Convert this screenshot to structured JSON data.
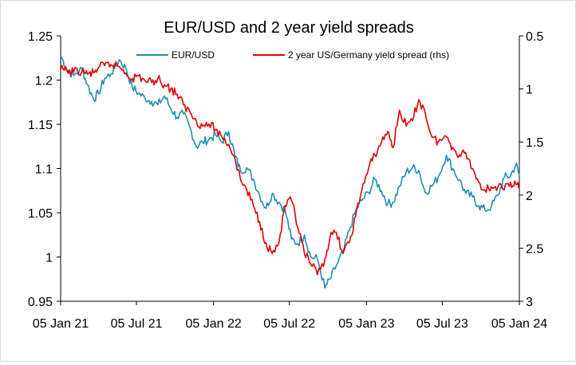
{
  "chart_data": {
    "type": "line",
    "title": "EUR/USD and 2 year yield spreads",
    "xlabel": "",
    "ylabel_left": "",
    "ylabel_right": "",
    "x_ticks": [
      "05 Jan 21",
      "05 Jul 21",
      "05 Jan 22",
      "05 Jul 22",
      "05 Jan 23",
      "05 Jul 23",
      "05 Jan 24"
    ],
    "x_tick_dates": [
      "2021-01-05",
      "2021-07-05",
      "2022-01-05",
      "2022-07-05",
      "2023-01-05",
      "2023-07-05",
      "2024-01-05"
    ],
    "xlim": [
      "2021-01-05",
      "2024-01-05"
    ],
    "y_left": {
      "ticks": [
        "0.95",
        "1",
        "1.05",
        "1.1",
        "1.15",
        "1.2",
        "1.25"
      ],
      "ylim": [
        0.95,
        1.25
      ]
    },
    "y_right": {
      "ticks": [
        "0.5",
        "1",
        "1.5",
        "2",
        "2.5",
        "3"
      ],
      "ylim": [
        0.5,
        3
      ],
      "inverted": true
    },
    "grid": false,
    "legend": "top",
    "series": [
      {
        "name": "EUR/USD",
        "axis": "left",
        "color": "#1f8fb0",
        "x": [
          "2021-01-05",
          "2021-01-20",
          "2021-02-05",
          "2021-02-25",
          "2021-03-10",
          "2021-03-25",
          "2021-04-05",
          "2021-04-20",
          "2021-05-05",
          "2021-05-25",
          "2021-06-10",
          "2021-06-25",
          "2021-07-10",
          "2021-07-25",
          "2021-08-10",
          "2021-08-25",
          "2021-09-10",
          "2021-09-25",
          "2021-10-10",
          "2021-10-25",
          "2021-11-10",
          "2021-11-25",
          "2021-12-10",
          "2021-12-25",
          "2022-01-10",
          "2022-01-25",
          "2022-02-10",
          "2022-02-25",
          "2022-03-10",
          "2022-03-25",
          "2022-04-10",
          "2022-04-25",
          "2022-05-10",
          "2022-05-25",
          "2022-06-10",
          "2022-06-25",
          "2022-07-10",
          "2022-07-25",
          "2022-08-10",
          "2022-08-25",
          "2022-09-10",
          "2022-09-28",
          "2022-10-10",
          "2022-10-25",
          "2022-11-10",
          "2022-11-25",
          "2022-12-10",
          "2022-12-25",
          "2023-01-10",
          "2023-01-25",
          "2023-02-10",
          "2023-02-25",
          "2023-03-10",
          "2023-03-25",
          "2023-04-10",
          "2023-04-25",
          "2023-05-10",
          "2023-05-25",
          "2023-06-10",
          "2023-06-25",
          "2023-07-15",
          "2023-07-30",
          "2023-08-15",
          "2023-08-30",
          "2023-09-15",
          "2023-09-30",
          "2023-10-15",
          "2023-10-30",
          "2023-11-15",
          "2023-11-30",
          "2023-12-15",
          "2023-12-28",
          "2024-01-05"
        ],
        "values": [
          1.228,
          1.212,
          1.205,
          1.213,
          1.195,
          1.178,
          1.185,
          1.202,
          1.207,
          1.223,
          1.213,
          1.192,
          1.185,
          1.18,
          1.176,
          1.172,
          1.182,
          1.168,
          1.158,
          1.162,
          1.146,
          1.125,
          1.13,
          1.133,
          1.138,
          1.13,
          1.142,
          1.115,
          1.098,
          1.101,
          1.088,
          1.07,
          1.055,
          1.072,
          1.062,
          1.053,
          1.02,
          1.015,
          1.025,
          1.0,
          0.998,
          0.965,
          0.975,
          0.99,
          1.005,
          1.03,
          1.052,
          1.064,
          1.073,
          1.088,
          1.075,
          1.06,
          1.062,
          1.08,
          1.096,
          1.101,
          1.098,
          1.073,
          1.08,
          1.09,
          1.115,
          1.1,
          1.087,
          1.072,
          1.068,
          1.058,
          1.053,
          1.057,
          1.07,
          1.09,
          1.092,
          1.105,
          1.092
        ]
      },
      {
        "name": "2 year US/Germany yield spread (rhs)",
        "axis": "right",
        "color": "#e00000",
        "x": [
          "2021-01-05",
          "2021-01-20",
          "2021-02-05",
          "2021-02-25",
          "2021-03-10",
          "2021-03-25",
          "2021-04-05",
          "2021-04-20",
          "2021-05-05",
          "2021-05-25",
          "2021-06-10",
          "2021-06-25",
          "2021-07-10",
          "2021-07-25",
          "2021-08-10",
          "2021-08-25",
          "2021-09-10",
          "2021-09-25",
          "2021-10-10",
          "2021-10-25",
          "2021-11-10",
          "2021-11-25",
          "2021-12-10",
          "2021-12-25",
          "2022-01-10",
          "2022-01-25",
          "2022-02-10",
          "2022-02-25",
          "2022-03-10",
          "2022-03-25",
          "2022-04-10",
          "2022-04-25",
          "2022-05-10",
          "2022-05-25",
          "2022-06-10",
          "2022-06-25",
          "2022-07-10",
          "2022-07-25",
          "2022-08-10",
          "2022-08-25",
          "2022-09-10",
          "2022-09-28",
          "2022-10-10",
          "2022-10-25",
          "2022-11-10",
          "2022-11-25",
          "2022-12-10",
          "2022-12-25",
          "2023-01-10",
          "2023-01-25",
          "2023-02-10",
          "2023-02-25",
          "2023-03-10",
          "2023-03-25",
          "2023-04-10",
          "2023-04-25",
          "2023-05-10",
          "2023-05-25",
          "2023-06-10",
          "2023-06-25",
          "2023-07-15",
          "2023-07-30",
          "2023-08-15",
          "2023-08-30",
          "2023-09-15",
          "2023-09-30",
          "2023-10-15",
          "2023-10-30",
          "2023-11-15",
          "2023-11-30",
          "2023-12-15",
          "2023-12-28",
          "2024-01-05"
        ],
        "values": [
          0.82,
          0.83,
          0.84,
          0.83,
          0.86,
          0.85,
          0.8,
          0.78,
          0.77,
          0.79,
          0.85,
          0.9,
          0.88,
          0.92,
          0.94,
          0.9,
          0.96,
          1.0,
          1.05,
          1.15,
          1.22,
          1.3,
          1.35,
          1.33,
          1.38,
          1.45,
          1.52,
          1.65,
          1.85,
          1.95,
          2.1,
          2.25,
          2.45,
          2.55,
          2.45,
          2.1,
          2.05,
          2.3,
          2.55,
          2.65,
          2.75,
          2.6,
          2.4,
          2.35,
          2.55,
          2.45,
          2.2,
          1.95,
          1.75,
          1.62,
          1.5,
          1.4,
          1.55,
          1.2,
          1.35,
          1.3,
          1.1,
          1.22,
          1.45,
          1.5,
          1.45,
          1.55,
          1.62,
          1.6,
          1.75,
          1.88,
          1.95,
          1.92,
          1.92,
          1.95,
          1.88,
          1.9,
          1.92
        ]
      }
    ]
  }
}
